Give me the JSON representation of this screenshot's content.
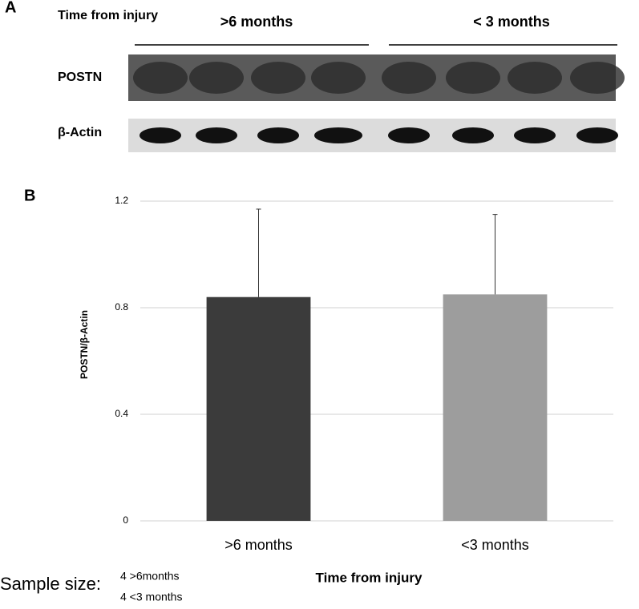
{
  "panel_a": {
    "label": "A",
    "header": "Time from injury",
    "groups": [
      ">6 months",
      "< 3 months"
    ],
    "rows": [
      "POSTN",
      "β-Actin"
    ]
  },
  "chart_data": {
    "type": "bar",
    "panel_label": "B",
    "categories": [
      ">6 months",
      "<3 months"
    ],
    "values": [
      0.84,
      0.85
    ],
    "errors": [
      0.33,
      0.3
    ],
    "colors": [
      "#3b3b3b",
      "#9d9d9d"
    ],
    "ylabel": "POSTN/β-Actin",
    "xlabel": "Time from injury",
    "ylim": [
      0,
      1.2
    ],
    "yticks": [
      0,
      0.4,
      0.8,
      1.2
    ],
    "grid": true
  },
  "sample_size": {
    "label": "Sample size:",
    "lines": [
      "4 >6months",
      "4 <3 months"
    ]
  }
}
